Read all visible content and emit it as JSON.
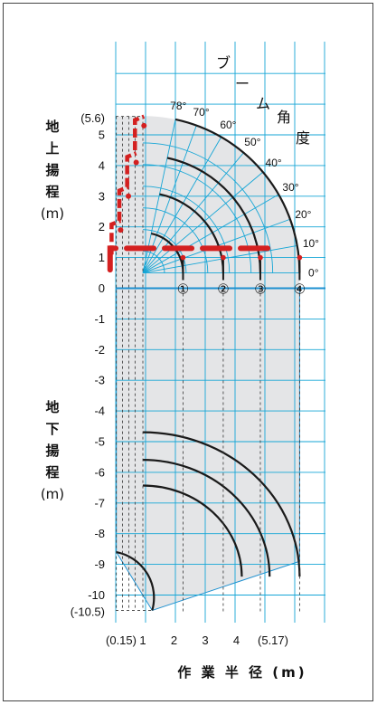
{
  "above_ground_label": [
    "地",
    "上",
    "揚",
    "程",
    "(m)"
  ],
  "below_ground_label": [
    "地",
    "下",
    "揚",
    "程",
    "(m)"
  ],
  "boom_angle_label": [
    "ブ",
    "ー",
    "ム",
    "角",
    "度"
  ],
  "x_axis_title": "作 業 半 径 (m)",
  "y_tick_labels": [
    {
      "value": 5.6,
      "text": "(5.6)"
    },
    {
      "value": 5,
      "text": "5"
    },
    {
      "value": 4,
      "text": "4"
    },
    {
      "value": 3,
      "text": "3"
    },
    {
      "value": 2,
      "text": "2"
    },
    {
      "value": 1,
      "text": "1"
    },
    {
      "value": 0,
      "text": "0"
    },
    {
      "value": -1,
      "text": "-1"
    },
    {
      "value": -2,
      "text": "-2"
    },
    {
      "value": -3,
      "text": "-3"
    },
    {
      "value": -4,
      "text": "-4"
    },
    {
      "value": -5,
      "text": "-5"
    },
    {
      "value": -6,
      "text": "-6"
    },
    {
      "value": -7,
      "text": "-7"
    },
    {
      "value": -8,
      "text": "-8"
    },
    {
      "value": -9,
      "text": "-9"
    },
    {
      "value": -10,
      "text": "-10"
    },
    {
      "value": -10.5,
      "text": "(-10.5)"
    }
  ],
  "x_tick_labels": [
    {
      "value": 0.15,
      "text": "(0.15)"
    },
    {
      "value": 1,
      "text": "1"
    },
    {
      "value": 2,
      "text": "2"
    },
    {
      "value": 3,
      "text": "3"
    },
    {
      "value": 4,
      "text": "4"
    },
    {
      "value": 5.17,
      "text": "(5.17)"
    }
  ],
  "angle_labels": [
    {
      "deg": 78,
      "text": "78°"
    },
    {
      "deg": 70,
      "text": "70°"
    },
    {
      "deg": 60,
      "text": "60°"
    },
    {
      "deg": 50,
      "text": "50°"
    },
    {
      "deg": 40,
      "text": "40°"
    },
    {
      "deg": 30,
      "text": "30°"
    },
    {
      "deg": 20,
      "text": "20°"
    },
    {
      "deg": 10,
      "text": "10°"
    },
    {
      "deg": 0,
      "text": "0°"
    }
  ],
  "boom_section_marks": [
    "①",
    "②",
    "③",
    "④"
  ],
  "boom_section_radii": [
    1.3,
    2.6,
    3.8,
    5.07
  ],
  "colors": {
    "grid": "#16a6d6",
    "ground_line": "#1e90d0",
    "range_fill": "#e4e5e7",
    "boom_arc": "#1a1a1a",
    "boom_red": "#d42020"
  }
}
